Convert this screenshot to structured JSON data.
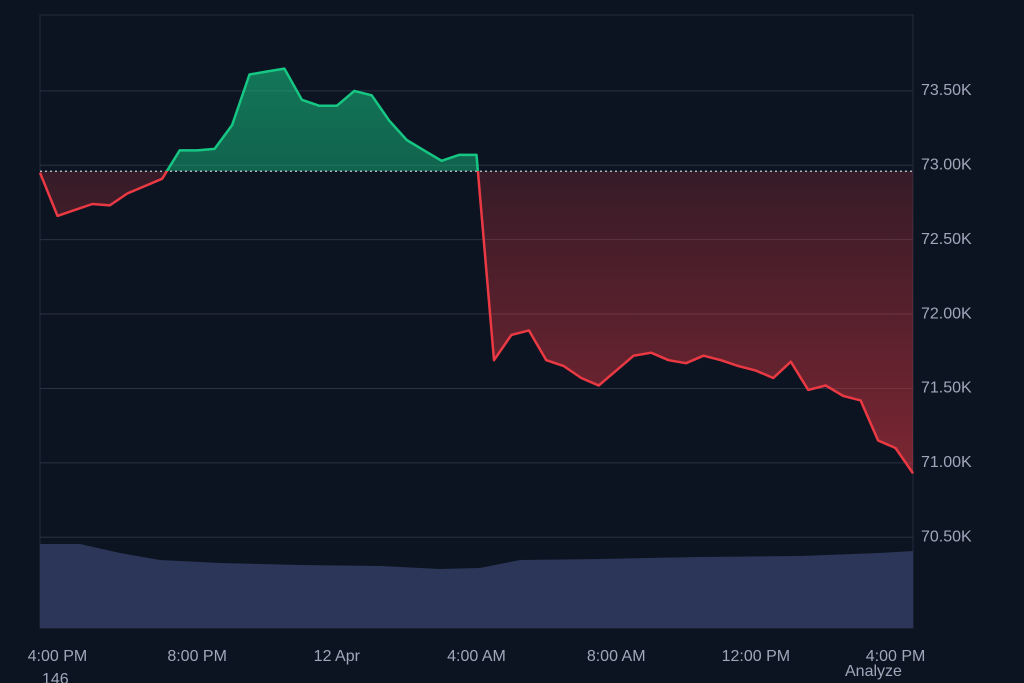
{
  "chart_data": {
    "type": "line",
    "categories": [
      null,
      "4:00 PM",
      null,
      null,
      null,
      null,
      null,
      null,
      null,
      "8:00 PM",
      null,
      null,
      null,
      null,
      null,
      null,
      null,
      "12 Apr",
      null,
      null,
      null,
      null,
      null,
      null,
      null,
      "4:00 AM",
      null,
      null,
      null,
      null,
      null,
      null,
      null,
      "8:00 AM",
      null,
      null,
      null,
      null,
      null,
      null,
      null,
      "12:00 PM",
      null,
      null,
      null,
      null,
      null,
      null,
      null,
      "4:00 PM",
      null
    ],
    "series": [
      {
        "values": [
          72950,
          72660,
          72700,
          72740,
          72730,
          72810,
          72860,
          72910,
          73100,
          73100,
          73110,
          73270,
          73610,
          73630,
          73650,
          73440,
          73400,
          73400,
          73500,
          73470,
          73300,
          73170,
          73100,
          73030,
          73070,
          73070,
          71690,
          71860,
          71890,
          71690,
          71650,
          71570,
          71520,
          71620,
          71720,
          71740,
          71690,
          71670,
          71720,
          71690,
          71650,
          71620,
          71570,
          71680,
          71490,
          71520,
          71450,
          71420,
          71150,
          71100,
          70930
        ],
        "color_up": "#16c784",
        "color_down": "#ea3943"
      }
    ],
    "baseline": 72960,
    "ylim": [
      69890,
      74010
    ],
    "yticks": [
      {
        "value": 70500,
        "label": "70.50K"
      },
      {
        "value": 71000,
        "label": "71.00K"
      },
      {
        "value": 71500,
        "label": "71.50K"
      },
      {
        "value": 72000,
        "label": "72.00K"
      },
      {
        "value": 72500,
        "label": "72.50K"
      },
      {
        "value": 73000,
        "label": "73.00K"
      },
      {
        "value": 73500,
        "label": "73.50K"
      }
    ],
    "grid": true,
    "footer_texts": [
      "146",
      "Analyze"
    ]
  }
}
